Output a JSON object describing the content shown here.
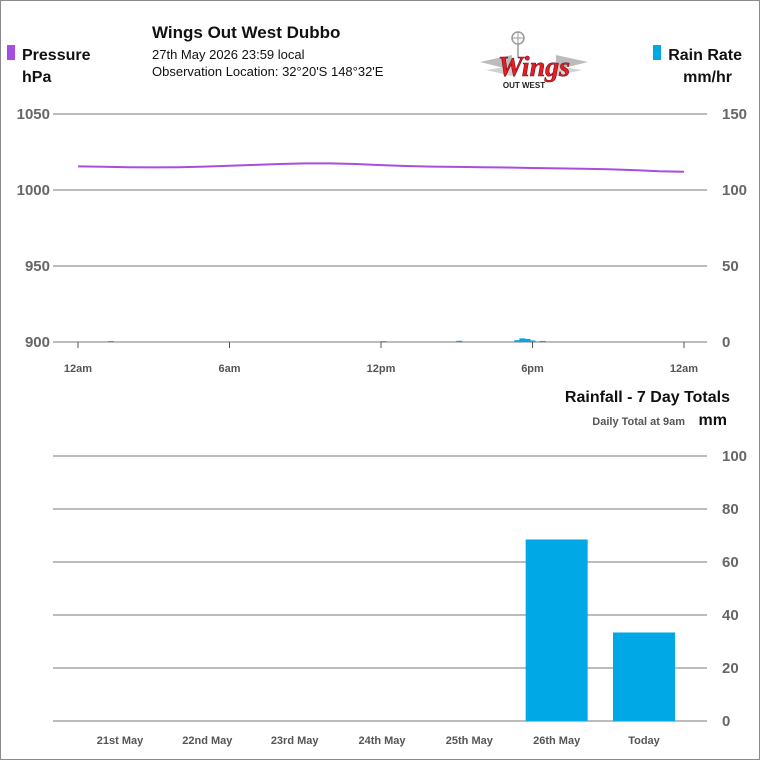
{
  "header": {
    "title": "Wings Out West Dubbo",
    "date_time": "27th May 2026  23:59 local",
    "location": "Observation Location: 32°20'S 148°32'E",
    "logo_word": "Wings",
    "logo_sub": "OUT WEST"
  },
  "colors": {
    "pressure": "#a64ee0",
    "rain": "#00a8e6",
    "grid": "#7a7a7a",
    "axis_text": "#666666"
  },
  "chart_data": [
    {
      "type": "line",
      "legend_left": "Pressure",
      "legend_right": "Rain Rate",
      "ylabel_left": "hPa",
      "ylabel_right": "mm/hr",
      "ylim_left": [
        900,
        1050
      ],
      "ylim_right": [
        0,
        150
      ],
      "yticks_left": [
        "1050",
        "1000",
        "950",
        "900"
      ],
      "yticks_right": [
        "150",
        "100",
        "50",
        "0"
      ],
      "xlim_hours": [
        0,
        24
      ],
      "xticks": [
        "12am",
        "6am",
        "12pm",
        "6pm",
        "12am"
      ],
      "series": [
        {
          "name": "Pressure",
          "axis": "left",
          "points": [
            [
              0,
              1015.5
            ],
            [
              1,
              1015.3
            ],
            [
              2,
              1015.0
            ],
            [
              3,
              1014.9
            ],
            [
              4,
              1015.0
            ],
            [
              5,
              1015.4
            ],
            [
              6,
              1015.9
            ],
            [
              7,
              1016.5
            ],
            [
              8,
              1017.1
            ],
            [
              9,
              1017.5
            ],
            [
              10,
              1017.5
            ],
            [
              11,
              1017.1
            ],
            [
              12,
              1016.4
            ],
            [
              13,
              1015.8
            ],
            [
              14,
              1015.4
            ],
            [
              15,
              1015.2
            ],
            [
              16,
              1015.0
            ],
            [
              17,
              1014.8
            ],
            [
              18,
              1014.5
            ],
            [
              19,
              1014.2
            ],
            [
              20,
              1014.0
            ],
            [
              21,
              1013.7
            ],
            [
              22,
              1013.1
            ],
            [
              23,
              1012.3
            ],
            [
              24,
              1012.0
            ]
          ]
        },
        {
          "name": "Rain Rate",
          "axis": "right",
          "points": [
            [
              1.3,
              0.6
            ],
            [
              12.1,
              0.6
            ],
            [
              15.1,
              0.8
            ],
            [
              17.4,
              1.2
            ],
            [
              17.6,
              2.4
            ],
            [
              17.8,
              2.0
            ],
            [
              18.0,
              1.0
            ],
            [
              18.4,
              0.7
            ]
          ]
        }
      ]
    },
    {
      "type": "bar",
      "title": "Rainfall - 7 Day Totals",
      "subtitle": "Daily Total at 9am",
      "ylabel": "mm",
      "ylim": [
        0,
        100
      ],
      "yticks": [
        "100",
        "80",
        "60",
        "40",
        "20",
        "0"
      ],
      "categories": [
        "21st May",
        "22nd May",
        "23rd May",
        "24th May",
        "25th May",
        "26th May",
        "Today"
      ],
      "values": [
        0,
        0,
        0,
        0,
        0,
        68.5,
        33.4
      ]
    }
  ]
}
